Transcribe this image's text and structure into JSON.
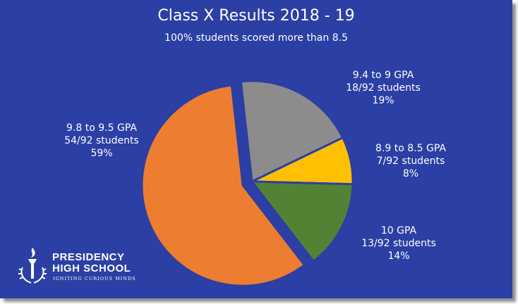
{
  "title": "Class X Results  2018  -  19",
  "subtitle": "100% students scored more than 8.5",
  "chart_data": {
    "type": "pie",
    "title": "Class X Results  2018  -  19",
    "subtitle": "100% students scored more than 8.5",
    "slices": [
      {
        "label": "9.4 to 9 GPA",
        "students": "18/92 students",
        "percent_label": "19%",
        "value": 18,
        "color": "#8c8c8c",
        "exploded": false
      },
      {
        "label": "8.9 to 8.5 GPA",
        "students": "7/92 students",
        "percent_label": "8%",
        "value": 7,
        "color": "#fec000",
        "exploded": false
      },
      {
        "label": "10 GPA",
        "students": "13/92 students",
        "percent_label": "14%",
        "value": 13,
        "color": "#548235",
        "exploded": false
      },
      {
        "label": "9.8 to 9.5 GPA",
        "students": "54/92 students",
        "percent_label": "59%",
        "value": 54,
        "color": "#ed7d31",
        "exploded": true
      }
    ],
    "total": 92,
    "legend": "none"
  },
  "logo": {
    "name_line1": "PRESIDENCY",
    "name_line2": "HIGH SCHOOL",
    "tagline": "IGNITING CURIOUS MINDS"
  },
  "colors": {
    "background": "#2b3fa4",
    "slice_border": "#2b3fa4",
    "text": "#ffffff"
  }
}
